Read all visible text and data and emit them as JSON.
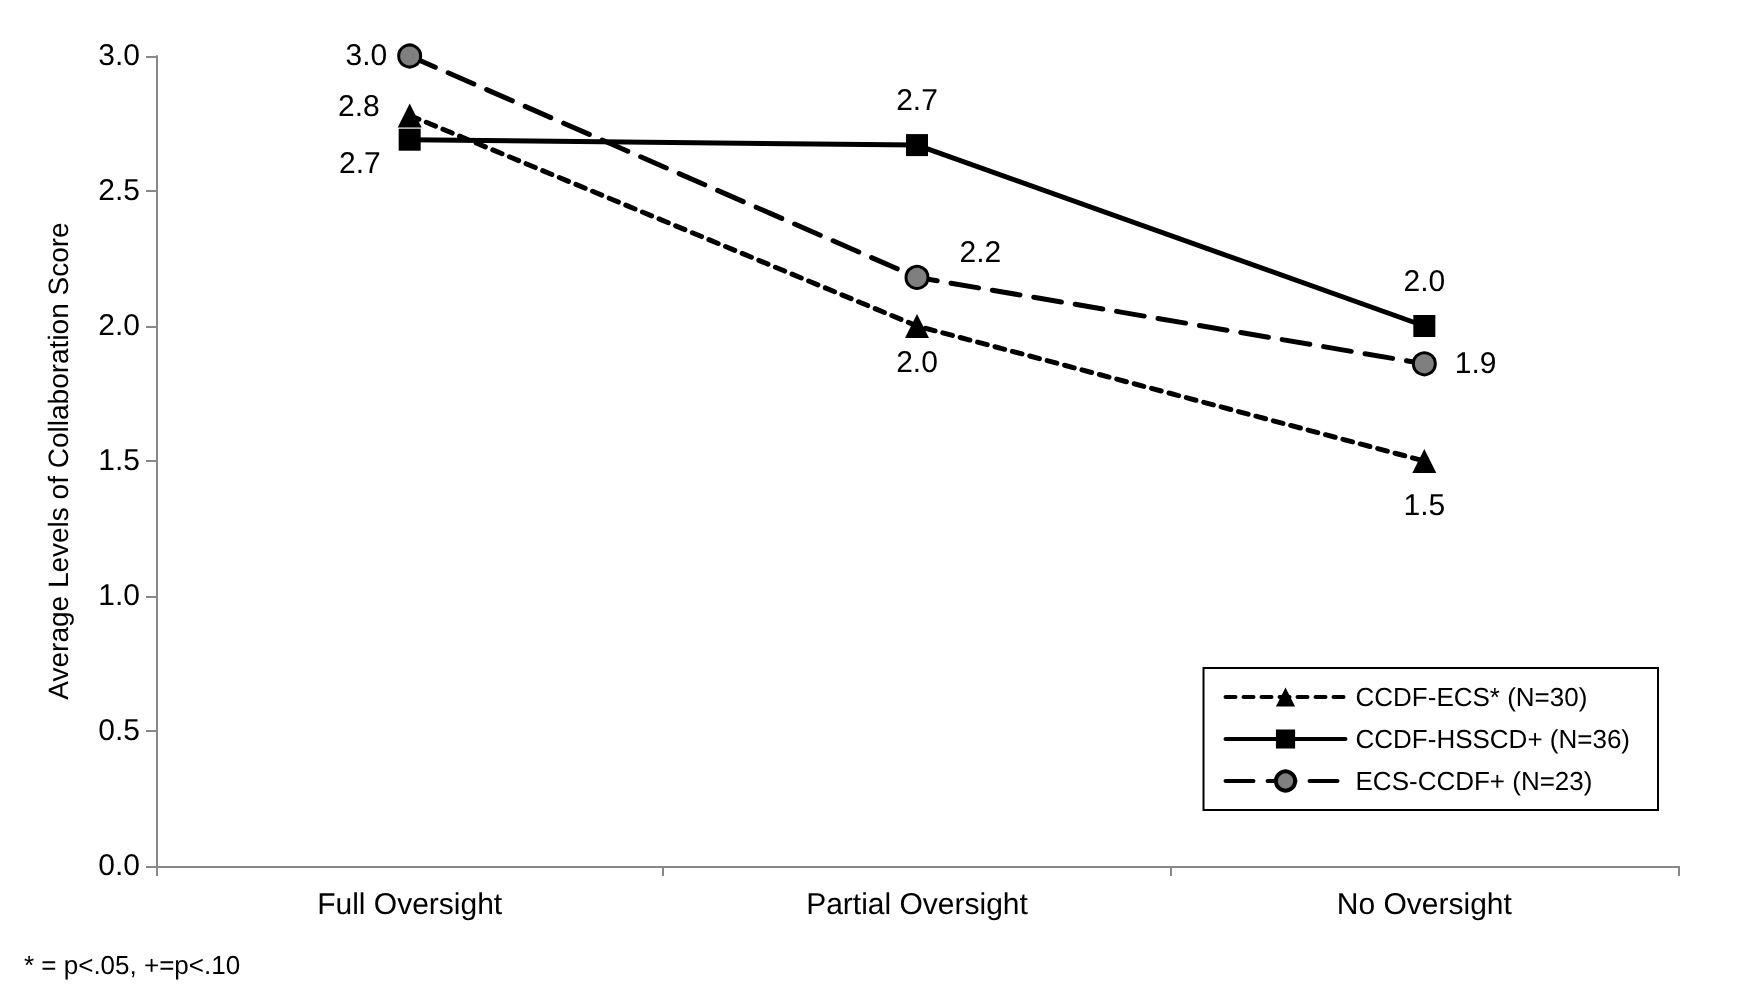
{
  "chart_data": {
    "type": "line",
    "ylabel": "Average Levels of Collaboration Score",
    "categories": [
      "Full Oversight",
      "Partial Oversight",
      "No Oversight"
    ],
    "series": [
      {
        "name": "CCDF-ECS* (N=30)",
        "color": "#000000",
        "values": [
          2.78,
          2.0,
          1.5
        ],
        "value_labels": [
          "2.8",
          "2.0",
          "1.5"
        ],
        "marker": "triangle",
        "line_style": "dotted"
      },
      {
        "name": "CCDF-HSSCD+ (N=36)",
        "color": "#000000",
        "values": [
          2.69,
          2.67,
          2.0
        ],
        "value_labels": [
          "2.7",
          "2.7",
          "2.0"
        ],
        "marker": "square",
        "line_style": "solid"
      },
      {
        "name": "ECS-CCDF+ (N=23)",
        "color": "#000000",
        "values": [
          3.0,
          2.18,
          1.86
        ],
        "value_labels": [
          "3.0",
          "2.2",
          "1.9"
        ],
        "marker": "circle",
        "line_style": "dashed"
      }
    ],
    "ylim": [
      0,
      3
    ],
    "yticks": [
      {
        "value": 0,
        "label": "0.0"
      },
      {
        "value": 0.5,
        "label": "0.5"
      },
      {
        "value": 1,
        "label": "1.0"
      },
      {
        "value": 1.5,
        "label": "1.5"
      },
      {
        "value": 2,
        "label": "2.0"
      },
      {
        "value": 2.5,
        "label": "2.5"
      },
      {
        "value": 3,
        "label": "3.0"
      }
    ],
    "grid": false,
    "legend": "bottom right",
    "annotations": [
      "* = p<.05, +=p<.10"
    ]
  }
}
